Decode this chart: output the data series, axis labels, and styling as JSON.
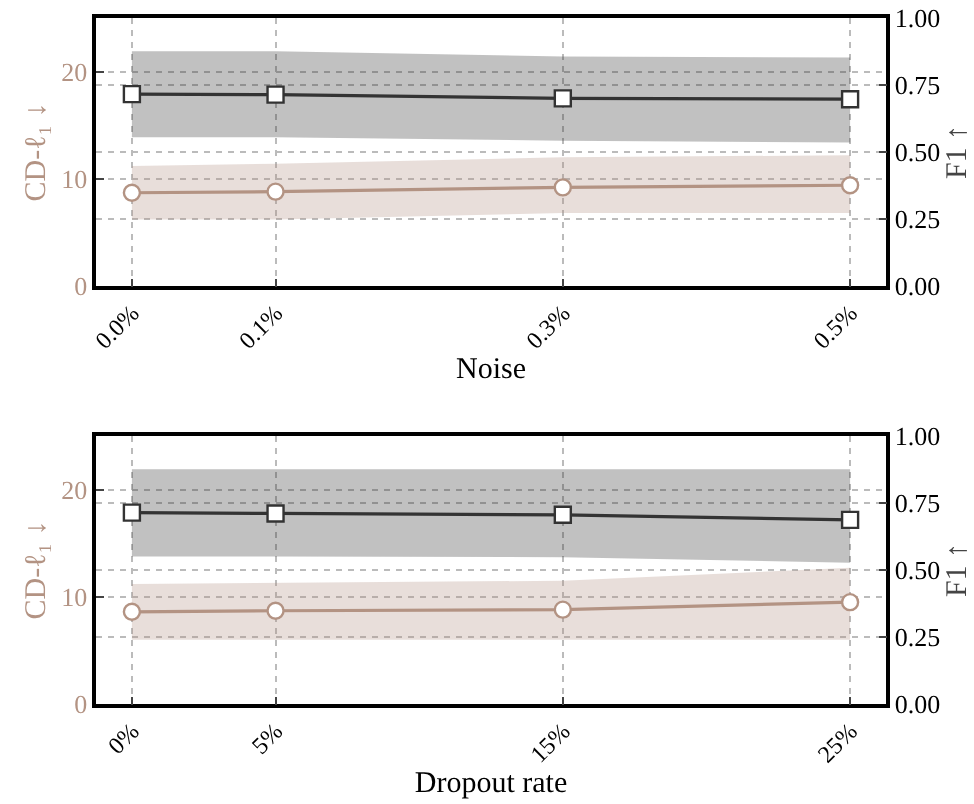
{
  "chart_data": [
    {
      "type": "line",
      "xlabel": "Noise",
      "ylabel": "CD-ℓ₁ ↓",
      "y2label": "F1 ↑",
      "grid": true,
      "x": [
        0,
        0.1,
        0.3,
        0.5
      ],
      "xlim": [
        -0.025,
        0.525
      ],
      "xticks": [
        {
          "value": 0,
          "label": "0.0%"
        },
        {
          "value": 0.1,
          "label": "0.1%"
        },
        {
          "value": 0.3,
          "label": "0.3%"
        },
        {
          "value": 0.5,
          "label": "0.5%"
        }
      ],
      "ylim": [
        0,
        25
      ],
      "yticks": [
        0,
        10,
        20
      ],
      "y2lim": [
        0,
        1
      ],
      "y2ticks": [
        {
          "value": 0,
          "label": "0.00"
        },
        {
          "value": 0.25,
          "label": "0.25"
        },
        {
          "value": 0.5,
          "label": "0.50"
        },
        {
          "value": 0.75,
          "label": "0.75"
        },
        {
          "value": 1,
          "label": "1.00"
        }
      ],
      "series": [
        {
          "color": "#b39383",
          "marker": "circle",
          "values": [
            8.7,
            8.8,
            9.2,
            9.4
          ],
          "lower": [
            6.2,
            6.2,
            6.8,
            6.8
          ],
          "upper": [
            11.2,
            11.4,
            12.0,
            12.2
          ]
        },
        {
          "color": "#333333",
          "marker": "square",
          "axis": "y2",
          "values": [
            0.716,
            0.714,
            0.7,
            0.697
          ],
          "lower": [
            0.555,
            0.555,
            0.542,
            0.535
          ],
          "upper": [
            0.876,
            0.876,
            0.856,
            0.853
          ]
        }
      ]
    },
    {
      "type": "line",
      "xlabel": "Dropout rate",
      "ylabel": "CD-ℓ₁ ↓",
      "y2label": "F1 ↑",
      "grid": true,
      "x": [
        0,
        5,
        15,
        25
      ],
      "xlim": [
        -1.25,
        26.25
      ],
      "xticks": [
        {
          "value": 0,
          "label": "0%"
        },
        {
          "value": 5,
          "label": "5%"
        },
        {
          "value": 15,
          "label": "15%"
        },
        {
          "value": 25,
          "label": "25%"
        }
      ],
      "ylim": [
        0,
        25
      ],
      "yticks": [
        0,
        10,
        20
      ],
      "y2lim": [
        0,
        1
      ],
      "y2ticks": [
        {
          "value": 0,
          "label": "0.00"
        },
        {
          "value": 0.25,
          "label": "0.25"
        },
        {
          "value": 0.5,
          "label": "0.50"
        },
        {
          "value": 0.75,
          "label": "0.75"
        },
        {
          "value": 1,
          "label": "1.00"
        }
      ],
      "series": [
        {
          "color": "#b39383",
          "marker": "circle",
          "values": [
            8.6,
            8.7,
            8.8,
            9.5
          ],
          "lower": [
            6.0,
            6.0,
            6.0,
            6.0
          ],
          "upper": [
            11.2,
            11.3,
            11.5,
            12.7
          ]
        },
        {
          "color": "#333333",
          "marker": "square",
          "axis": "y2",
          "values": [
            0.714,
            0.711,
            0.706,
            0.687
          ],
          "lower": [
            0.55,
            0.55,
            0.548,
            0.527
          ],
          "upper": [
            0.876,
            0.876,
            0.876,
            0.876
          ]
        }
      ]
    }
  ]
}
